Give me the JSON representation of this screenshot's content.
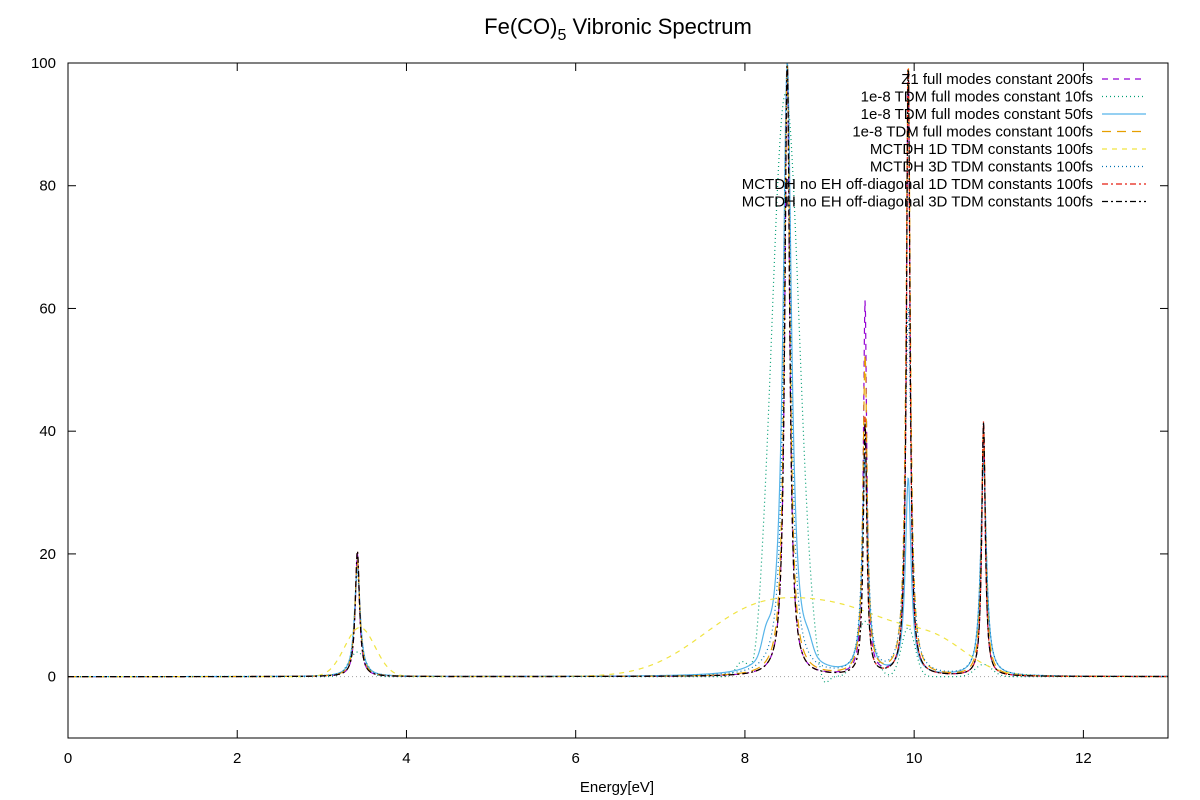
{
  "chart_data": {
    "type": "line",
    "title_main": "Fe(CO)",
    "title_sub": "5",
    "title_rest": " Vibronic Spectrum",
    "xlabel": "Energy[eV]",
    "ylabel": "",
    "xlim": [
      0,
      13
    ],
    "ylim": [
      -10,
      100
    ],
    "x_ticks": [
      0,
      2,
      4,
      6,
      8,
      10,
      12
    ],
    "y_ticks": [
      0,
      20,
      40,
      60,
      80,
      100
    ],
    "grid": false,
    "legend_position": "top-right",
    "zero_line": true,
    "series": [
      {
        "name": "Z1 full modes constant 200fs",
        "color": "#9400d3",
        "dash": "6,5",
        "components": {
          "lorentz": [
            [
              3.42,
              20,
              0.03
            ],
            [
              8.5,
              100,
              0.035
            ],
            [
              9.42,
              61,
              0.025
            ],
            [
              9.93,
              100,
              0.025
            ],
            [
              10.82,
              41,
              0.025
            ]
          ],
          "gauss": []
        }
      },
      {
        "name": "1e-8 TDM full modes constant 10fs",
        "color": "#009e73",
        "dash": "1,3",
        "components": {
          "lorentz": [],
          "gauss": [
            [
              3.42,
              4,
              0.1
            ],
            [
              7.95,
              2,
              0.06
            ],
            [
              8.12,
              -3,
              0.05
            ],
            [
              8.48,
              95,
              0.16
            ],
            [
              8.92,
              -2.5,
              0.06
            ],
            [
              9.42,
              9,
              0.1
            ],
            [
              9.93,
              8,
              0.08
            ],
            [
              10.82,
              2,
              0.1
            ]
          ]
        }
      },
      {
        "name": "1e-8 TDM full modes constant 50fs",
        "color": "#56b4e9",
        "dash": "",
        "components": {
          "lorentz": [
            [
              3.42,
              18,
              0.04
            ],
            [
              8.5,
              100,
              0.06
            ],
            [
              9.42,
              35,
              0.04
            ],
            [
              9.93,
              32,
              0.04
            ],
            [
              10.82,
              35,
              0.04
            ]
          ],
          "gauss": [
            [
              8.25,
              3,
              0.05
            ],
            [
              8.75,
              2,
              0.05
            ]
          ]
        }
      },
      {
        "name": "1e-8 TDM full modes constant 100fs",
        "color": "#e69f00",
        "dash": "9,6",
        "components": {
          "lorentz": [
            [
              3.42,
              19,
              0.035
            ],
            [
              8.5,
              100,
              0.04
            ],
            [
              9.42,
              52,
              0.03
            ],
            [
              9.93,
              100,
              0.03
            ],
            [
              10.82,
              40,
              0.03
            ]
          ],
          "gauss": []
        }
      },
      {
        "name": "MCTDH 1D TDM constants 100fs",
        "color": "#f0e442",
        "dash": "5,5",
        "components": {
          "lorentz": [],
          "gauss": [
            [
              3.45,
              8,
              0.18
            ],
            [
              8.05,
              8.8,
              0.65
            ],
            [
              9.25,
              9.8,
              0.75
            ],
            [
              10.3,
              3,
              0.35
            ]
          ]
        }
      },
      {
        "name": "MCTDH 3D TDM constants 100fs",
        "color": "#0072b2",
        "dash": "1,3",
        "components": {
          "lorentz": [
            [
              3.42,
              17,
              0.04
            ],
            [
              8.5,
              100,
              0.05
            ],
            [
              9.42,
              38,
              0.04
            ],
            [
              9.93,
              60,
              0.04
            ],
            [
              10.82,
              35,
              0.04
            ]
          ],
          "gauss": []
        }
      },
      {
        "name": "MCTDH no EH off-diagonal 1D TDM constants 100fs",
        "color": "#e51e10",
        "dash": "6,3,2,3",
        "components": {
          "lorentz": [
            [
              3.42,
              20.5,
              0.03
            ],
            [
              8.5,
              100,
              0.035
            ],
            [
              9.42,
              42,
              0.025
            ],
            [
              9.93,
              100,
              0.025
            ],
            [
              10.82,
              41.5,
              0.025
            ]
          ],
          "gauss": []
        }
      },
      {
        "name": "MCTDH no EH off-diagonal 3D TDM constants 100fs",
        "color": "#000000",
        "dash": "6,3,2,3",
        "components": {
          "lorentz": [
            [
              3.42,
              20.5,
              0.03
            ],
            [
              8.5,
              100,
              0.035
            ],
            [
              9.42,
              41,
              0.025
            ],
            [
              9.93,
              100,
              0.025
            ],
            [
              10.82,
              41.5,
              0.025
            ]
          ],
          "gauss": []
        }
      }
    ]
  }
}
